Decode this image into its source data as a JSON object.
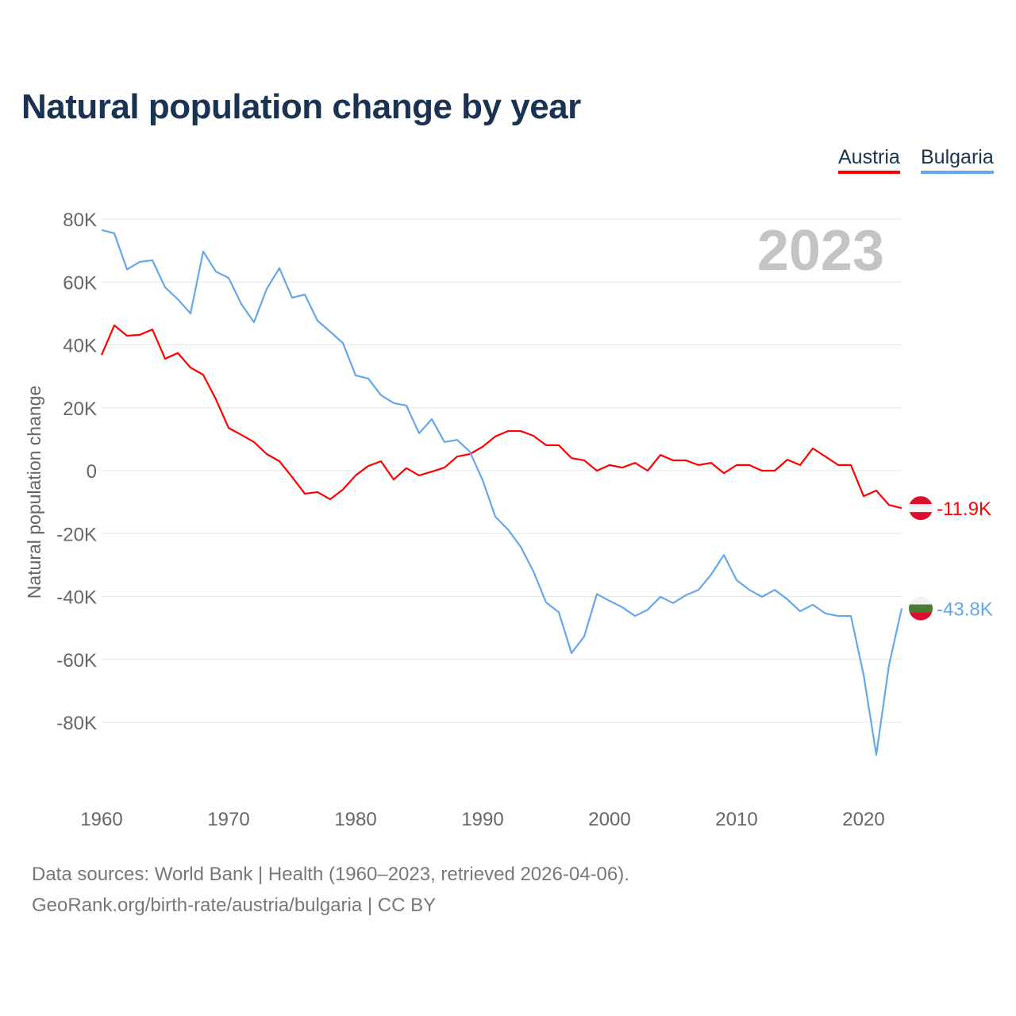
{
  "chart_data": {
    "type": "line",
    "title": "Natural population change by year",
    "ylabel": "Natural population change",
    "xlabel": "",
    "year_overlay": "2023",
    "ylim": [
      -100000,
      80000
    ],
    "xlim": [
      1960,
      2023
    ],
    "y_ticks": [
      80000,
      60000,
      40000,
      20000,
      0,
      -20000,
      -40000,
      -60000,
      -80000
    ],
    "y_tick_labels": [
      "80K",
      "60K",
      "40K",
      "20K",
      "0",
      "-20K",
      "-40K",
      "-60K",
      "-80K"
    ],
    "x_ticks": [
      1960,
      1970,
      1980,
      1990,
      2000,
      2010,
      2020
    ],
    "x_tick_labels": [
      "1960",
      "1970",
      "1980",
      "1990",
      "2000",
      "2010",
      "2020"
    ],
    "grid": true,
    "legend_placement": "top-right",
    "series": [
      {
        "name": "Austria",
        "color": "#ff0000",
        "end_label": "-11.9K",
        "flag": "austria-flag",
        "values": [
          36.8,
          46.2,
          42.9,
          43.2,
          44.9,
          35.6,
          37.4,
          32.8,
          30.5,
          22.7,
          13.6,
          11.4,
          9.1,
          5.3,
          3.0,
          -2.0,
          -7.3,
          -6.8,
          -9.1,
          -6.0,
          -1.5,
          1.5,
          3.0,
          -2.8,
          0.8,
          -1.5,
          -0.3,
          1.0,
          4.5,
          5.3,
          7.6,
          10.9,
          12.6,
          12.6,
          11.1,
          8.1,
          8.1,
          4.0,
          3.3,
          0.0,
          1.8,
          1.0,
          2.5,
          0.0,
          5.0,
          3.3,
          3.3,
          1.8,
          2.5,
          -0.8,
          1.8,
          1.8,
          0.0,
          0.0,
          3.5,
          1.8,
          7.1,
          4.5,
          1.8,
          1.8,
          -8.1,
          -6.3,
          -10.9,
          -11.9
        ]
      },
      {
        "name": "Bulgaria",
        "color": "#64a8ea",
        "end_label": "-43.8K",
        "flag": "bulgaria-flag",
        "values": [
          76.5,
          75.5,
          64.0,
          66.4,
          66.9,
          58.3,
          54.5,
          50.0,
          69.7,
          63.3,
          61.3,
          53.0,
          47.2,
          57.8,
          64.4,
          55.0,
          56.0,
          47.7,
          44.2,
          40.6,
          30.3,
          29.3,
          24.0,
          21.5,
          20.7,
          11.9,
          16.4,
          9.1,
          9.8,
          6.0,
          -3.0,
          -14.6,
          -18.7,
          -24.2,
          -32.0,
          -41.9,
          -45.0,
          -58.0,
          -52.7,
          -39.2,
          -41.4,
          -43.4,
          -46.2,
          -44.2,
          -40.1,
          -42.1,
          -39.6,
          -37.9,
          -33.0,
          -26.8,
          -34.8,
          -37.9,
          -40.1,
          -37.9,
          -40.9,
          -44.7,
          -42.6,
          -45.4,
          -46.2,
          -46.2,
          -64.9,
          -90.3,
          -61.8,
          -43.8
        ]
      }
    ],
    "value_units": "thousands"
  },
  "footer": {
    "line1": "Data sources: World Bank | Health (1960–2023, retrieved 2026-04-06).",
    "line2": "GeoRank.org/birth-rate/austria/bulgaria | CC BY"
  }
}
